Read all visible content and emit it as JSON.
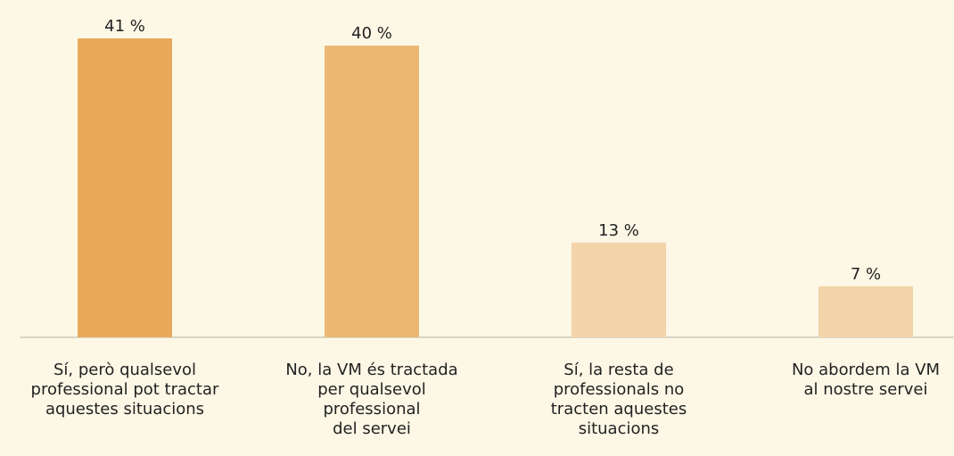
{
  "chart_data": {
    "type": "bar",
    "categories": [
      "Sí, però qualsevol\nprofessional pot tractar\naquestes situacions",
      "No, la VM és tractada\nper qualsevol\nprofessional\ndel servei",
      "Sí, la resta de\nprofessionals no\ntracten aquestes\nsituacions",
      "No abordem la VM\nal nostre servei"
    ],
    "values": [
      41,
      40,
      13,
      7
    ],
    "value_labels": [
      "41 %",
      "40 %",
      "13 %",
      "7 %"
    ],
    "colors": [
      "#e9a95a",
      "#ecb873",
      "#f3d4a9",
      "#f3d4a9"
    ],
    "ylim": [
      0,
      41
    ]
  }
}
